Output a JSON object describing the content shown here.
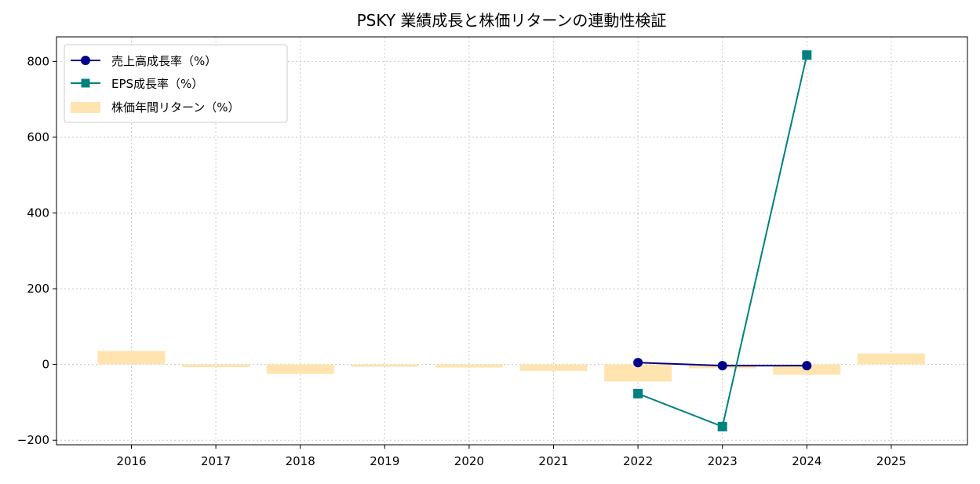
{
  "chart_data": {
    "type": "bar",
    "title": "PSKY 業績成長と株価リターンの連動性検証",
    "xlabel": "",
    "ylabel": "",
    "categories": [
      "2016",
      "2017",
      "2018",
      "2019",
      "2020",
      "2021",
      "2022",
      "2023",
      "2024",
      "2025"
    ],
    "ylim": [
      -212,
      865
    ],
    "yticks": [
      -200,
      0,
      200,
      400,
      600,
      800
    ],
    "grid": true,
    "legend_position": "top-left",
    "bars": {
      "name": "株価年間リターン（%）",
      "color": "#ffe4b0",
      "values": [
        36,
        -7,
        -25,
        -6,
        -8,
        -17,
        -45,
        -10,
        -27,
        29
      ]
    },
    "series": [
      {
        "name": "売上高成長率（%）",
        "color": "#00008b",
        "marker": "circle",
        "points": [
          [
            "2022",
            5
          ],
          [
            "2023",
            -3
          ],
          [
            "2024",
            -3
          ]
        ]
      },
      {
        "name": "EPS成長率（%）",
        "color": "#008080",
        "marker": "square",
        "points": [
          [
            "2022",
            -77
          ],
          [
            "2023",
            -164
          ],
          [
            "2024",
            817
          ]
        ]
      }
    ]
  }
}
